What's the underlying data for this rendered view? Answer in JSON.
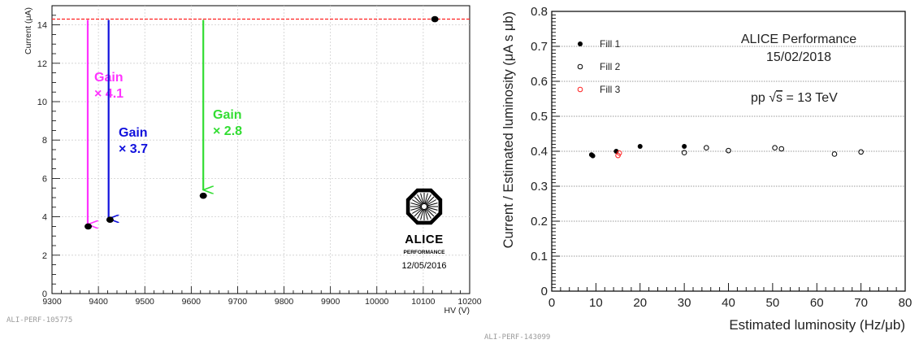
{
  "chart_data": [
    {
      "type": "scatter",
      "xlabel": "HV (V)",
      "ylabel": "Current (μA)",
      "xlim": [
        9300,
        10200
      ],
      "ylim": [
        0,
        15
      ],
      "x_ticks": [
        9300,
        9400,
        9500,
        9600,
        9700,
        9800,
        9900,
        10000,
        10100,
        10200
      ],
      "y_ticks": [
        0,
        2,
        4,
        6,
        8,
        10,
        12,
        14
      ],
      "grid": true,
      "series": [
        {
          "points": [
            {
              "x": 9378,
              "y": 3.5
            },
            {
              "x": 9425,
              "y": 3.85
            },
            {
              "x": 9626,
              "y": 5.1
            },
            {
              "x": 10125,
              "y": 14.3
            }
          ]
        }
      ],
      "reference_line": {
        "y": 14.3,
        "color": "#ff2020"
      },
      "annotations": [
        {
          "id": "gain-41",
          "title": "Gain",
          "value": "× 4.1",
          "color": "#ff33ff",
          "x": 9377,
          "y_from": 14.3,
          "y_to": 3.6
        },
        {
          "id": "gain-37",
          "title": "Gain",
          "value": "× 3.7",
          "color": "#1111dd",
          "x": 9422,
          "y_from": 14.3,
          "y_to": 3.9
        },
        {
          "id": "gain-28",
          "title": "Gain",
          "value": "× 2.8",
          "color": "#33dd33",
          "x": 9626,
          "y_from": 14.3,
          "y_to": 5.4
        }
      ],
      "logo": {
        "name": "ALICE",
        "subtitle": "PERFORMANCE",
        "date": "12/05/2016"
      },
      "figure_id": "ALI-PERF-105775"
    },
    {
      "type": "scatter",
      "xlabel": "Estimated luminosity (Hz/μb)",
      "ylabel": "Current / Estimated luminosity (μA s μb)",
      "xlim": [
        0,
        80
      ],
      "ylim": [
        0,
        0.8
      ],
      "x_ticks": [
        0,
        10,
        20,
        30,
        40,
        50,
        60,
        70,
        80
      ],
      "y_ticks": [
        0,
        0.1,
        0.2,
        0.3,
        0.4,
        0.5,
        0.6,
        0.7,
        0.8
      ],
      "grid": true,
      "legend": {
        "placement": "top-left"
      },
      "title_lines": [
        "ALICE Performance",
        "15/02/2018"
      ],
      "energy_text": {
        "prefix": "pp ",
        "sqrt": "√",
        "var": "s",
        "suffix": " = 13 TeV"
      },
      "series": [
        {
          "name": "Fill 1",
          "marker": "filled",
          "color": "#000000",
          "points": [
            {
              "x": 9,
              "y": 0.39
            },
            {
              "x": 9.3,
              "y": 0.387
            },
            {
              "x": 14.6,
              "y": 0.4
            },
            {
              "x": 20,
              "y": 0.414
            },
            {
              "x": 30,
              "y": 0.414
            }
          ]
        },
        {
          "name": "Fill 2",
          "marker": "open",
          "color": "#000000",
          "points": [
            {
              "x": 30,
              "y": 0.396
            },
            {
              "x": 35,
              "y": 0.41
            },
            {
              "x": 40,
              "y": 0.402
            },
            {
              "x": 50.5,
              "y": 0.41
            },
            {
              "x": 52,
              "y": 0.407
            },
            {
              "x": 64,
              "y": 0.392
            },
            {
              "x": 70,
              "y": 0.398
            }
          ]
        },
        {
          "name": "Fill 3",
          "marker": "open",
          "color": "#ff2020",
          "points": [
            {
              "x": 15,
              "y": 0.388
            },
            {
              "x": 15.3,
              "y": 0.395
            }
          ]
        }
      ],
      "figure_id": "ALI-PERF-143099"
    }
  ]
}
